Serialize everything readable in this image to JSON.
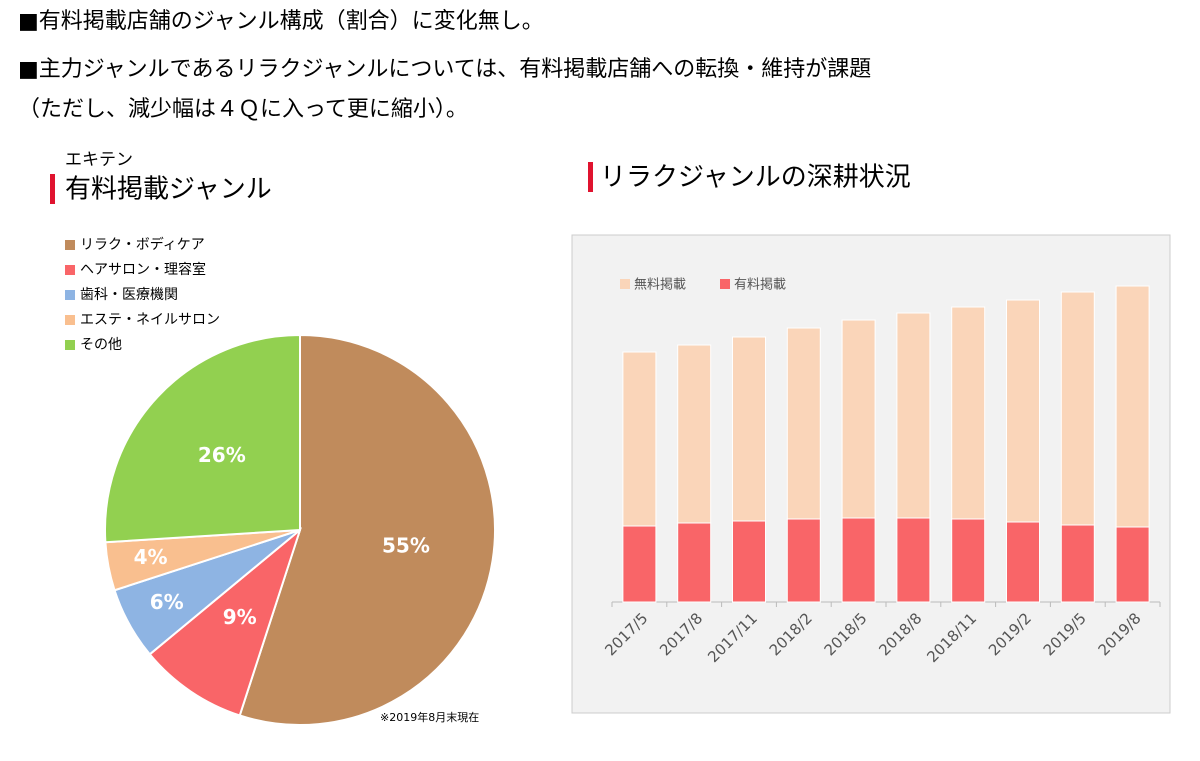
{
  "bullets": [
    "■有料掲載店舗のジャンル構成（割合）に変化無し。",
    "■主力ジャンルであるリラクジャンルについては、有料掲載店舗への転換・維持が課題",
    "（ただし、減少幅は４Ｑに入って更に縮小）。"
  ],
  "chart_data": [
    {
      "type": "pie",
      "supertitle": "エキテン",
      "title": "有料掲載ジャンル",
      "note": "※2019年8月末現在",
      "categories": [
        "リラク・ボディケア",
        "ヘアサロン・理容室",
        "歯科・医療機関",
        "エステ・ネイルサロン",
        "その他"
      ],
      "values": [
        55,
        9,
        6,
        4,
        26
      ],
      "value_labels": [
        "55%",
        "9%",
        "6%",
        "4%",
        "26%"
      ],
      "colors": [
        "#c08b5c",
        "#f96568",
        "#8eb4e3",
        "#f9bf8f",
        "#92d050"
      ]
    },
    {
      "type": "bar",
      "stacked": true,
      "title": "リラクジャンルの深耕状況",
      "categories": [
        "2017/5",
        "2017/8",
        "2017/11",
        "2018/2",
        "2018/5",
        "2018/8",
        "2018/11",
        "2019/2",
        "2019/5",
        "2019/8"
      ],
      "series": [
        {
          "name": "無料掲載",
          "color": "#fad5b9",
          "values": [
            174,
            178,
            184,
            191,
            198,
            205,
            212,
            222,
            233,
            241
          ]
        },
        {
          "name": "有料掲載",
          "color": "#f96568",
          "values": [
            76,
            79,
            81,
            83,
            84,
            84,
            83,
            80,
            77,
            75
          ]
        }
      ],
      "ylim": [
        0,
        330
      ]
    }
  ]
}
